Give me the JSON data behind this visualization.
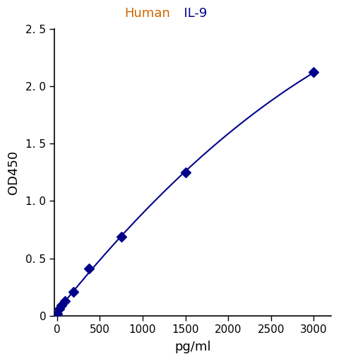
{
  "title_human": "Human",
  "title_il9": "  IL-9",
  "title_human_color": "#CC6600",
  "title_il9_color": "#00008B",
  "xlabel": "pg/ml",
  "ylabel": "OD450",
  "x_data": [
    0,
    23.4,
    46.9,
    93.75,
    187.5,
    375,
    750,
    1500,
    3000
  ],
  "y_data": [
    0.02,
    0.06,
    0.09,
    0.13,
    0.21,
    0.41,
    0.69,
    1.25,
    2.12
  ],
  "line_color": "#00008B",
  "marker_color": "#00008B",
  "xlim": [
    -30,
    3200
  ],
  "ylim": [
    0,
    2.5
  ],
  "xticks": [
    0,
    500,
    1000,
    1500,
    2000,
    2500,
    3000
  ],
  "yticks": [
    0,
    0.5,
    1.0,
    1.5,
    2.0,
    2.5
  ],
  "ytick_labels": [
    "0",
    "0. 5",
    "1. 0",
    "1. 5",
    "2. 0",
    "2. 5"
  ],
  "xtick_labels": [
    "0",
    "500",
    "1000",
    "1500",
    "2000",
    "2500",
    "3000"
  ],
  "background_color": "#ffffff",
  "fig_width": 4.83,
  "fig_height": 5.08,
  "dpi": 100
}
